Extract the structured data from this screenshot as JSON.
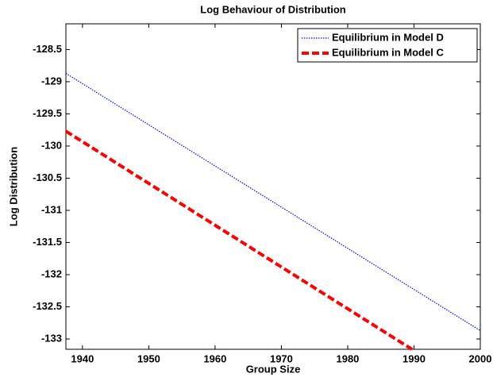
{
  "chart_data": {
    "type": "line",
    "title": "Log Behaviour of Distribution",
    "xlabel": "Group Size",
    "ylabel": "Log Distribution",
    "xlim": [
      1937.5,
      2000
    ],
    "xticks": [
      1940,
      1950,
      1960,
      1970,
      1980,
      1990,
      2000
    ],
    "ylim": [
      -133.16,
      -128.1
    ],
    "yticks": [
      -133,
      -132.5,
      -132,
      -131.5,
      -131,
      -130.5,
      -130,
      -129.5,
      -129,
      -128.5
    ],
    "legend": "upper right",
    "series": [
      {
        "name": "Equilibrium in Model D",
        "color": "#0000ff",
        "style": "dotted",
        "x": [
          1937.5,
          2000
        ],
        "values": [
          -128.87,
          -132.87
        ]
      },
      {
        "name": "Equilibrium in Model C",
        "color": "#ff0000",
        "style": "dashed",
        "x": [
          1937.5,
          1989.7
        ],
        "values": [
          -129.77,
          -133.16
        ]
      }
    ]
  }
}
